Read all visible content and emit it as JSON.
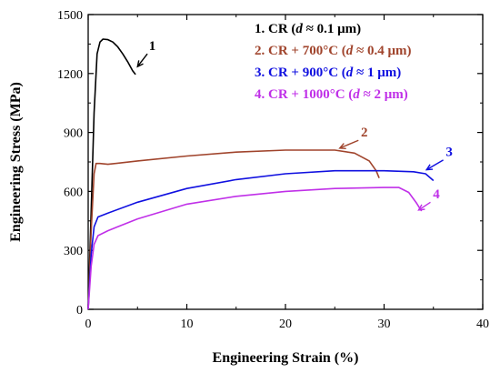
{
  "chart_data": {
    "type": "line",
    "xlabel": "Engineering Strain (%)",
    "ylabel": "Engineering Stress (MPa)",
    "xlim": [
      0,
      40
    ],
    "ylim": [
      0,
      1500
    ],
    "xticks": [
      0,
      10,
      20,
      30,
      40
    ],
    "yticks": [
      0,
      300,
      600,
      900,
      1200,
      1500
    ],
    "legend_position": "top-right",
    "series": [
      {
        "name": "1. CR (d ≈ 0.1 μm)",
        "legend": {
          "prefix": "1. CR (",
          "var": "d",
          "suffix": " ≈ 0.1 μm)"
        },
        "label": "1",
        "color": "#000000",
        "x": [
          0,
          0.3,
          0.6,
          0.9,
          1.2,
          1.5,
          2.0,
          2.5,
          3.0,
          3.5,
          4.0,
          4.5,
          4.8
        ],
        "y": [
          0,
          500,
          1000,
          1300,
          1360,
          1375,
          1372,
          1360,
          1335,
          1300,
          1260,
          1215,
          1195
        ]
      },
      {
        "name": "2. CR + 700°C (d ≈ 0.4 μm)",
        "legend": {
          "prefix": "2. CR + 700°C (",
          "var": "d",
          "suffix": " ≈ 0.4 μm)"
        },
        "label": "2",
        "color": "#a0442c",
        "x": [
          0,
          0.3,
          0.6,
          0.8,
          1.2,
          2.0,
          5,
          10,
          15,
          20,
          25,
          27,
          28.5,
          29.2,
          29.5
        ],
        "y": [
          0,
          400,
          690,
          742,
          742,
          738,
          755,
          780,
          800,
          810,
          810,
          795,
          755,
          705,
          668
        ]
      },
      {
        "name": "3. CR + 900°C (d ≈ 1 μm)",
        "legend": {
          "prefix": "3. CR + 900°C (",
          "var": "d",
          "suffix": " ≈ 1 μm)"
        },
        "label": "3",
        "color": "#1010e0",
        "x": [
          0,
          0.3,
          0.6,
          1.0,
          2,
          5,
          10,
          15,
          20,
          25,
          30,
          33,
          34.2,
          35
        ],
        "y": [
          0,
          280,
          420,
          470,
          490,
          545,
          615,
          660,
          690,
          705,
          705,
          700,
          690,
          655
        ]
      },
      {
        "name": "4. CR + 1000°C (d ≈ 2 μm)",
        "legend": {
          "prefix": "4. CR + 1000°C (",
          "var": "d",
          "suffix": " ≈ 2 μm)"
        },
        "label": "4",
        "color": "#c030e8",
        "x": [
          0,
          0.3,
          0.6,
          1.0,
          2,
          5,
          10,
          15,
          20,
          25,
          30,
          31.5,
          32.5,
          33.3,
          33.8
        ],
        "y": [
          0,
          220,
          330,
          375,
          400,
          460,
          535,
          575,
          600,
          615,
          620,
          620,
          595,
          540,
          500
        ]
      }
    ]
  }
}
